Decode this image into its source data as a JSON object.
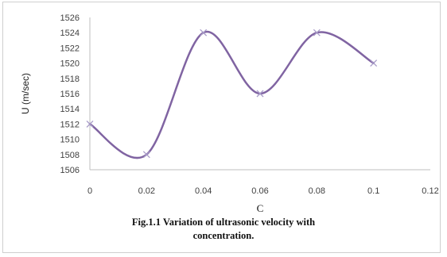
{
  "colors": {
    "line": "#8064A2",
    "marker": "#A89CC8",
    "axis": "#BFBFBF",
    "text": "#404040"
  },
  "chart_data": {
    "type": "scatter",
    "style": "smoothed line with x markers",
    "x": [
      0,
      0.02,
      0.04,
      0.06,
      0.08,
      0.1
    ],
    "y": [
      1512,
      1508,
      1524,
      1516,
      1524,
      1520
    ],
    "xlabel": "C",
    "ylabel": "U (m/sec)",
    "xlim": [
      0,
      0.12
    ],
    "ylim": [
      1506,
      1526
    ],
    "xticks": [
      "0",
      "0.02",
      "0.04",
      "0.06",
      "0.08",
      "0.1",
      "0.12"
    ],
    "yticks": [
      "1506",
      "1508",
      "1510",
      "1512",
      "1514",
      "1516",
      "1518",
      "1520",
      "1522",
      "1524",
      "1526"
    ],
    "grid": false,
    "legend": "none"
  },
  "caption": {
    "line1": "Fig.1.1 Variation of ultrasonic velocity with",
    "line2": "concentration."
  }
}
